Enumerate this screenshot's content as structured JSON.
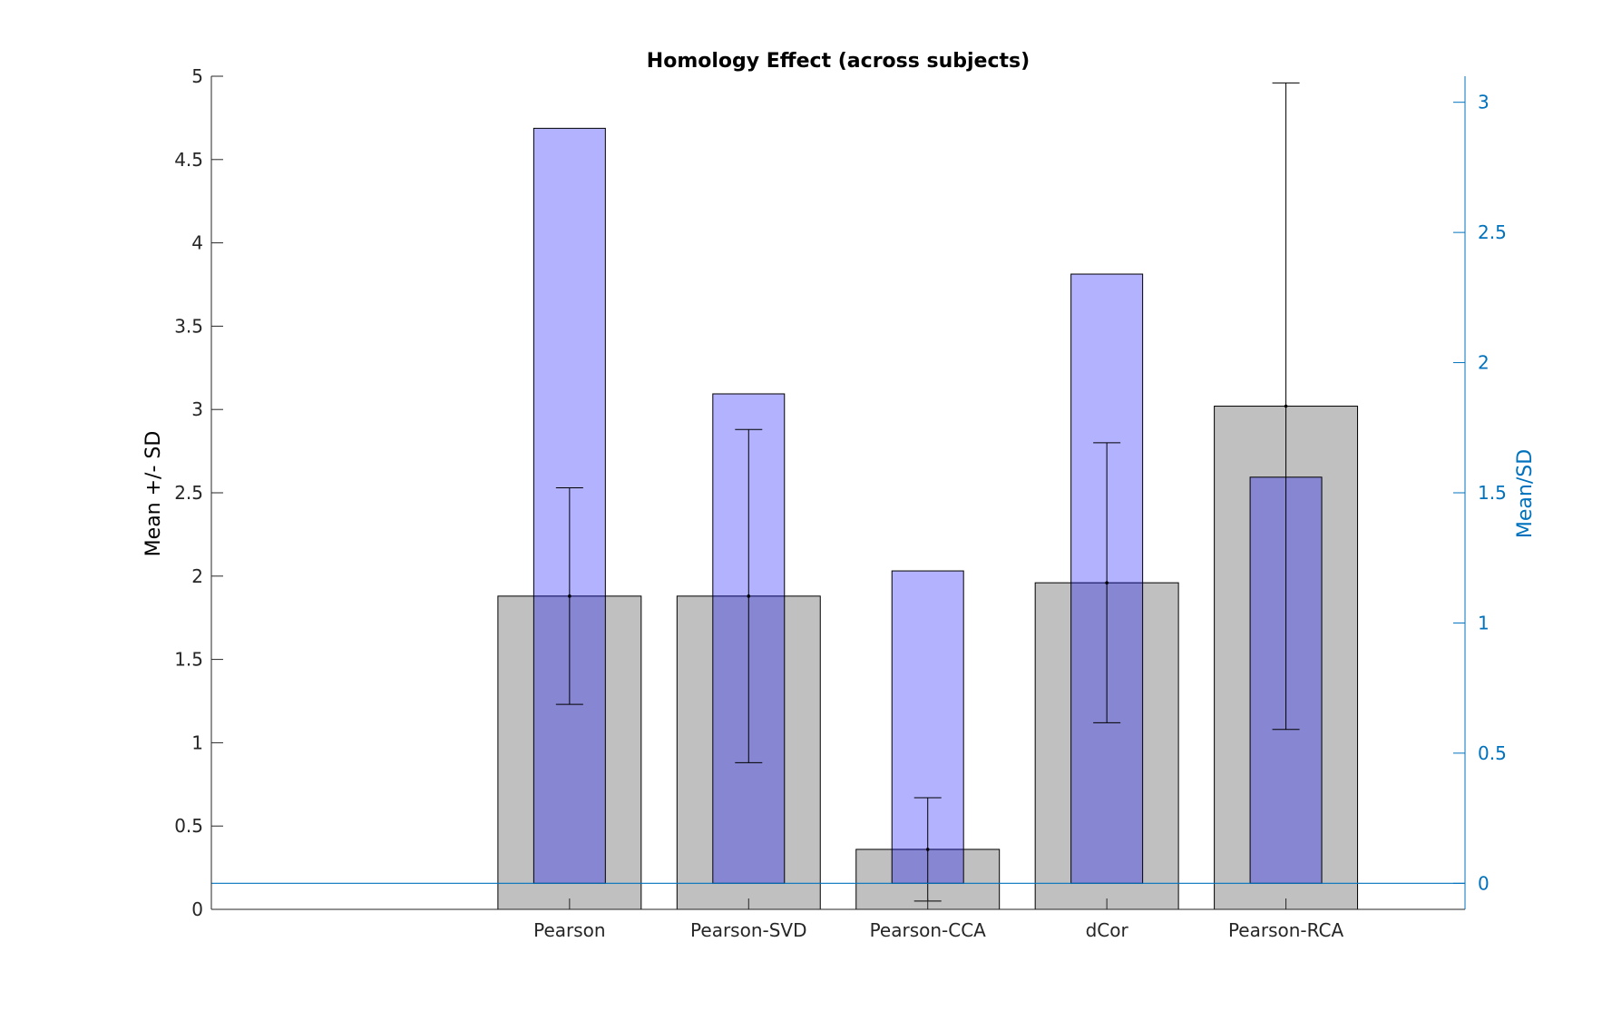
{
  "chart_data": {
    "type": "bar",
    "title": "Homology Effect (across subjects)",
    "xlabel": "",
    "ylabel_left": "Mean +/- SD",
    "ylabel_right": "Mean/SD",
    "categories": [
      "Pearson",
      "Pearson-SVD",
      "Pearson-CCA",
      "dCor",
      "Pearson-RCA"
    ],
    "ylim_left": [
      0,
      5
    ],
    "yticks_left": [
      "0",
      "0.5",
      "1",
      "1.5",
      "2",
      "2.5",
      "3",
      "3.5",
      "4",
      "4.5",
      "5"
    ],
    "ylim_right": [
      -0.1,
      3.1
    ],
    "yticks_right": [
      "0",
      "0.5",
      "1",
      "1.5",
      "2",
      "2.5",
      "3"
    ],
    "series": [
      {
        "axis": "left",
        "values": [
          1.88,
          1.88,
          0.36,
          1.96,
          3.02
        ],
        "sd": [
          0.65,
          1.0,
          0.31,
          0.84,
          1.94
        ],
        "color": "#c0c0c0"
      },
      {
        "axis": "right",
        "values": [
          2.9,
          1.88,
          1.2,
          2.34,
          1.56
        ],
        "color": "#b2b2ff"
      }
    ],
    "reference_line_right": 0,
    "colors": {
      "axis_left": "#262626",
      "axis_right": "#0072bd"
    },
    "grid": false,
    "legend": "none"
  }
}
